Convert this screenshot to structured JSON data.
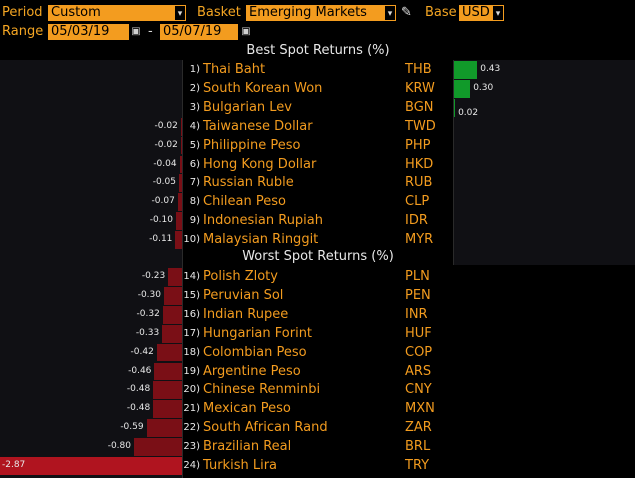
{
  "toolbar": {
    "period_label": "Period",
    "period_value": "Custom",
    "basket_label": "Basket",
    "basket_value": "Emerging Markets",
    "base_label": "Base",
    "base_value": "USD",
    "range_label": "Range",
    "range_start": "05/03/19",
    "range_sep": "-",
    "range_end": "05/07/19",
    "dropdown_icon": "▾",
    "calendar_icon": "▣",
    "pen_icon": "✎"
  },
  "best": {
    "title": "Best Spot Returns (%)",
    "rows": [
      {
        "rank": "1)",
        "name": "Thai Baht",
        "ticker": "THB",
        "value": 0.43,
        "label": "0.43"
      },
      {
        "rank": "2)",
        "name": "South Korean Won",
        "ticker": "KRW",
        "value": 0.3,
        "label": "0.30"
      },
      {
        "rank": "3)",
        "name": "Bulgarian Lev",
        "ticker": "BGN",
        "value": 0.02,
        "label": "0.02"
      },
      {
        "rank": "4)",
        "name": "Taiwanese Dollar",
        "ticker": "TWD",
        "value": -0.02,
        "label": "-0.02"
      },
      {
        "rank": "5)",
        "name": "Philippine Peso",
        "ticker": "PHP",
        "value": -0.02,
        "label": "-0.02"
      },
      {
        "rank": "6)",
        "name": "Hong Kong Dollar",
        "ticker": "HKD",
        "value": -0.04,
        "label": "-0.04"
      },
      {
        "rank": "7)",
        "name": "Russian Ruble",
        "ticker": "RUB",
        "value": -0.05,
        "label": "-0.05"
      },
      {
        "rank": "8)",
        "name": "Chilean Peso",
        "ticker": "CLP",
        "value": -0.07,
        "label": "-0.07"
      },
      {
        "rank": "9)",
        "name": "Indonesian Rupiah",
        "ticker": "IDR",
        "value": -0.1,
        "label": "-0.10"
      },
      {
        "rank": "10)",
        "name": "Malaysian Ringgit",
        "ticker": "MYR",
        "value": -0.11,
        "label": "-0.11"
      }
    ]
  },
  "worst": {
    "title": "Worst Spot Returns (%)",
    "rows": [
      {
        "rank": "14)",
        "name": "Polish Zloty",
        "ticker": "PLN",
        "value": -0.23,
        "label": "-0.23"
      },
      {
        "rank": "15)",
        "name": "Peruvian Sol",
        "ticker": "PEN",
        "value": -0.3,
        "label": "-0.30"
      },
      {
        "rank": "16)",
        "name": "Indian Rupee",
        "ticker": "INR",
        "value": -0.32,
        "label": "-0.32"
      },
      {
        "rank": "17)",
        "name": "Hungarian Forint",
        "ticker": "HUF",
        "value": -0.33,
        "label": "-0.33"
      },
      {
        "rank": "18)",
        "name": "Colombian Peso",
        "ticker": "COP",
        "value": -0.42,
        "label": "-0.42"
      },
      {
        "rank": "19)",
        "name": "Argentine Peso",
        "ticker": "ARS",
        "value": -0.46,
        "label": "-0.46"
      },
      {
        "rank": "20)",
        "name": "Chinese Renminbi",
        "ticker": "CNY",
        "value": -0.48,
        "label": "-0.48"
      },
      {
        "rank": "21)",
        "name": "Mexican Peso",
        "ticker": "MXN",
        "value": -0.48,
        "label": "-0.48"
      },
      {
        "rank": "22)",
        "name": "South African Rand",
        "ticker": "ZAR",
        "value": -0.59,
        "label": "-0.59"
      },
      {
        "rank": "23)",
        "name": "Brazilian Real",
        "ticker": "BRL",
        "value": -0.8,
        "label": "-0.80"
      },
      {
        "rank": "24)",
        "name": "Turkish Lira",
        "ticker": "TRY",
        "value": -2.87,
        "label": "-2.87"
      }
    ]
  },
  "colors": {
    "accent": "#f39c1f",
    "positive": "#119a2a",
    "negative": "#7a0f16",
    "negative_strong": "#b0141f"
  }
}
